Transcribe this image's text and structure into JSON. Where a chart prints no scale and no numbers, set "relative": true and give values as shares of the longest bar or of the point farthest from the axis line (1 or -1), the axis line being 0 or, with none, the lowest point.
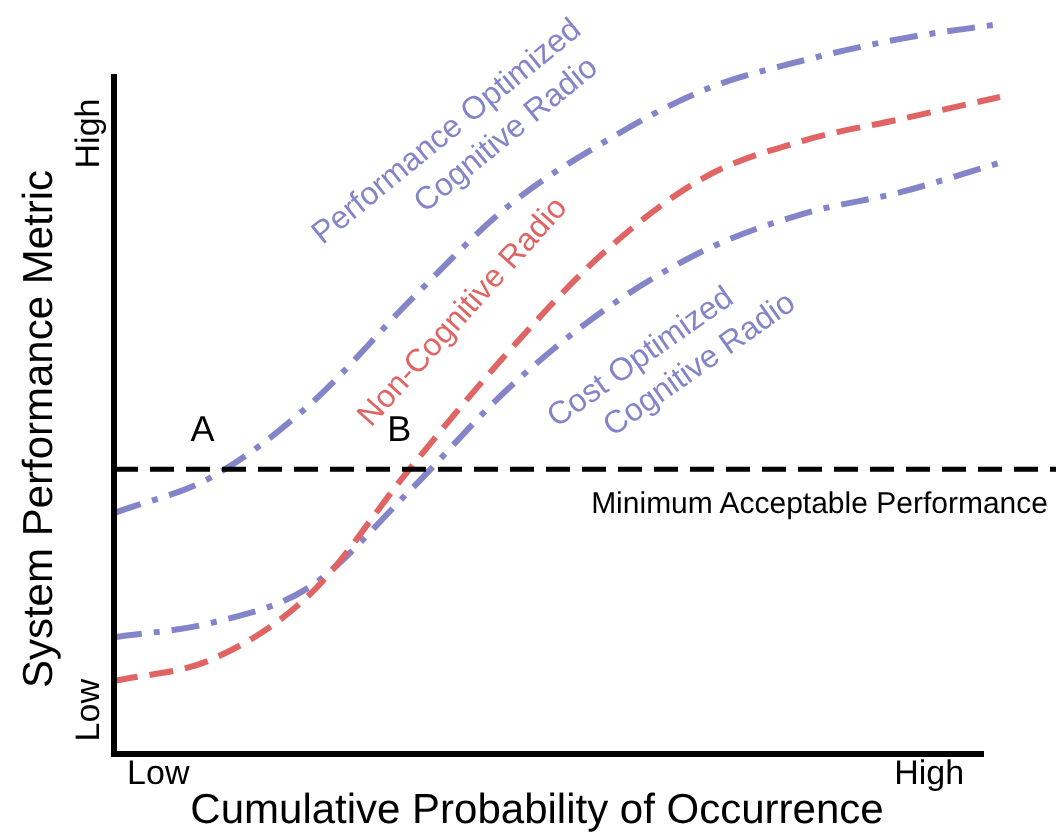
{
  "chart_data": {
    "type": "line",
    "relative": true,
    "xlabel": "Cumulative Probability of Occurrence",
    "ylabel": "System Performance Metric",
    "categories": [
      null,
      null,
      null,
      null,
      null,
      null,
      null,
      null,
      null,
      null
    ],
    "grid": false,
    "legend": false,
    "marker": "none",
    "series": [
      {
        "name": "Performance Optimized Cognitive Radio",
        "color": "#8484c8",
        "line_style": "dashdot",
        "values": [
          0.33,
          0.38,
          0.48,
          0.62,
          0.75,
          0.84,
          0.91,
          0.95,
          0.98,
          1.0
        ]
      },
      {
        "name": "Non-Cognitive Radio",
        "color": "#e06464",
        "line_style": "dashed",
        "values": [
          0.1,
          0.13,
          0.22,
          0.39,
          0.55,
          0.69,
          0.79,
          0.84,
          0.87,
          0.9
        ]
      },
      {
        "name": "Cost Optimized Cognitive Radio",
        "color": "#8484c8",
        "line_style": "dashdot",
        "values": [
          0.16,
          0.18,
          0.23,
          0.36,
          0.5,
          0.61,
          0.69,
          0.74,
          0.77,
          0.81
        ]
      }
    ],
    "ref_lines": [
      {
        "axis": "y",
        "value": 0.39,
        "label": "Minimum Acceptable Performance",
        "color": "#000000",
        "line_style": "dashed"
      }
    ],
    "annotations": [
      "Low",
      "High",
      "Low",
      "High",
      {
        "text": "A",
        "y": 0.39
      },
      {
        "text": "B",
        "y": 0.39
      }
    ]
  }
}
